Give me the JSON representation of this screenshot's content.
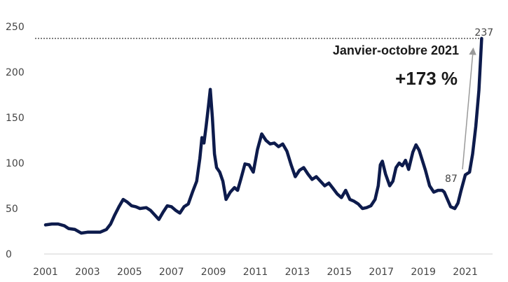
{
  "chart_data": {
    "type": "line",
    "title": "",
    "xlabel": "",
    "ylabel": "",
    "ylim": [
      0,
      250
    ],
    "xlim": [
      2001,
      2022.3
    ],
    "grid": false,
    "yticks": [
      0,
      50,
      100,
      150,
      200,
      250
    ],
    "xticks": [
      2001,
      2003,
      2005,
      2007,
      2009,
      2011,
      2013,
      2015,
      2017,
      2019,
      2021
    ],
    "line_color": "#0d1b4c",
    "series": [
      {
        "name": "",
        "points": [
          [
            2001.0,
            32
          ],
          [
            2001.3,
            33
          ],
          [
            2001.6,
            33
          ],
          [
            2001.9,
            31
          ],
          [
            2002.1,
            28
          ],
          [
            2002.4,
            27
          ],
          [
            2002.7,
            23
          ],
          [
            2003.0,
            24
          ],
          [
            2003.3,
            24
          ],
          [
            2003.6,
            24
          ],
          [
            2003.9,
            27
          ],
          [
            2004.1,
            33
          ],
          [
            2004.3,
            43
          ],
          [
            2004.5,
            52
          ],
          [
            2004.7,
            60
          ],
          [
            2004.9,
            57
          ],
          [
            2005.1,
            53
          ],
          [
            2005.3,
            52
          ],
          [
            2005.5,
            50
          ],
          [
            2005.8,
            51
          ],
          [
            2006.0,
            48
          ],
          [
            2006.2,
            43
          ],
          [
            2006.4,
            38
          ],
          [
            2006.6,
            46
          ],
          [
            2006.8,
            53
          ],
          [
            2007.0,
            52
          ],
          [
            2007.2,
            48
          ],
          [
            2007.4,
            45
          ],
          [
            2007.6,
            52
          ],
          [
            2007.8,
            55
          ],
          [
            2008.0,
            68
          ],
          [
            2008.2,
            80
          ],
          [
            2008.35,
            105
          ],
          [
            2008.45,
            128
          ],
          [
            2008.55,
            122
          ],
          [
            2008.65,
            140
          ],
          [
            2008.75,
            160
          ],
          [
            2008.85,
            181
          ],
          [
            2008.95,
            150
          ],
          [
            2009.05,
            110
          ],
          [
            2009.15,
            95
          ],
          [
            2009.3,
            90
          ],
          [
            2009.45,
            80
          ],
          [
            2009.6,
            60
          ],
          [
            2009.8,
            68
          ],
          [
            2010.0,
            73
          ],
          [
            2010.15,
            70
          ],
          [
            2010.3,
            82
          ],
          [
            2010.5,
            99
          ],
          [
            2010.7,
            98
          ],
          [
            2010.9,
            90
          ],
          [
            2011.1,
            115
          ],
          [
            2011.3,
            132
          ],
          [
            2011.5,
            125
          ],
          [
            2011.7,
            121
          ],
          [
            2011.9,
            122
          ],
          [
            2012.1,
            118
          ],
          [
            2012.3,
            121
          ],
          [
            2012.5,
            113
          ],
          [
            2012.7,
            98
          ],
          [
            2012.9,
            85
          ],
          [
            2013.1,
            92
          ],
          [
            2013.3,
            95
          ],
          [
            2013.5,
            88
          ],
          [
            2013.7,
            82
          ],
          [
            2013.9,
            85
          ],
          [
            2014.1,
            80
          ],
          [
            2014.3,
            75
          ],
          [
            2014.5,
            78
          ],
          [
            2014.7,
            72
          ],
          [
            2014.9,
            66
          ],
          [
            2015.1,
            62
          ],
          [
            2015.3,
            70
          ],
          [
            2015.5,
            60
          ],
          [
            2015.7,
            58
          ],
          [
            2015.9,
            55
          ],
          [
            2016.1,
            50
          ],
          [
            2016.3,
            51
          ],
          [
            2016.5,
            53
          ],
          [
            2016.7,
            60
          ],
          [
            2016.85,
            75
          ],
          [
            2016.95,
            98
          ],
          [
            2017.05,
            102
          ],
          [
            2017.2,
            88
          ],
          [
            2017.4,
            75
          ],
          [
            2017.55,
            80
          ],
          [
            2017.7,
            95
          ],
          [
            2017.85,
            100
          ],
          [
            2018.0,
            97
          ],
          [
            2018.15,
            103
          ],
          [
            2018.3,
            93
          ],
          [
            2018.5,
            112
          ],
          [
            2018.65,
            120
          ],
          [
            2018.8,
            114
          ],
          [
            2018.95,
            103
          ],
          [
            2019.1,
            92
          ],
          [
            2019.3,
            75
          ],
          [
            2019.5,
            68
          ],
          [
            2019.7,
            70
          ],
          [
            2019.9,
            70
          ],
          [
            2020.0,
            68
          ],
          [
            2020.15,
            60
          ],
          [
            2020.3,
            52
          ],
          [
            2020.5,
            50
          ],
          [
            2020.65,
            56
          ],
          [
            2020.8,
            70
          ],
          [
            2021.0,
            87
          ],
          [
            2021.2,
            90
          ],
          [
            2021.35,
            110
          ],
          [
            2021.5,
            140
          ],
          [
            2021.65,
            180
          ],
          [
            2021.78,
            237
          ]
        ]
      }
    ],
    "annotations": {
      "reference_line_value": 237,
      "reference_label": "237",
      "start_label": "87",
      "start_point": [
        2021.0,
        87
      ],
      "period_text": "Janvier-octobre 2021",
      "change_text": "+173 %"
    }
  }
}
